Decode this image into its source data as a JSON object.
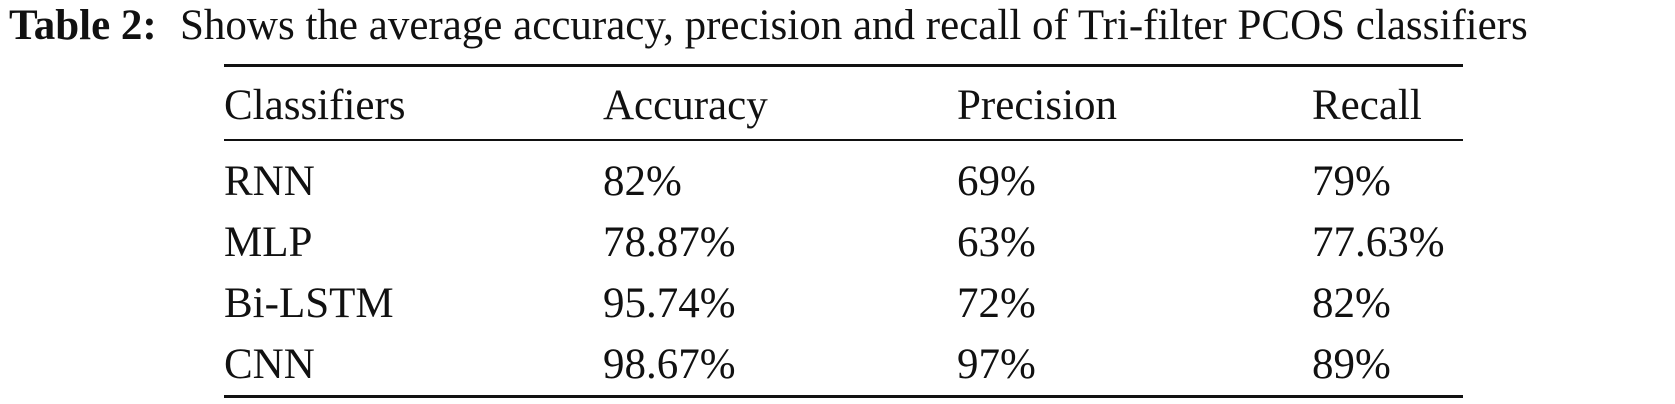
{
  "caption": {
    "label": "Table 2:",
    "text": "Shows the average accuracy, precision and recall of Tri-filter PCOS classifiers"
  },
  "table": {
    "header": [
      "Classifiers",
      "Accuracy",
      "Precision",
      "Recall"
    ],
    "rows": [
      [
        "RNN",
        "82%",
        "69%",
        "79%"
      ],
      [
        "MLP",
        "78.87%",
        "63%",
        "77.63%"
      ],
      [
        "Bi-LSTM",
        "95.74%",
        "72%",
        "82%"
      ],
      [
        "CNN",
        "98.67%",
        "97%",
        "89%"
      ]
    ]
  }
}
